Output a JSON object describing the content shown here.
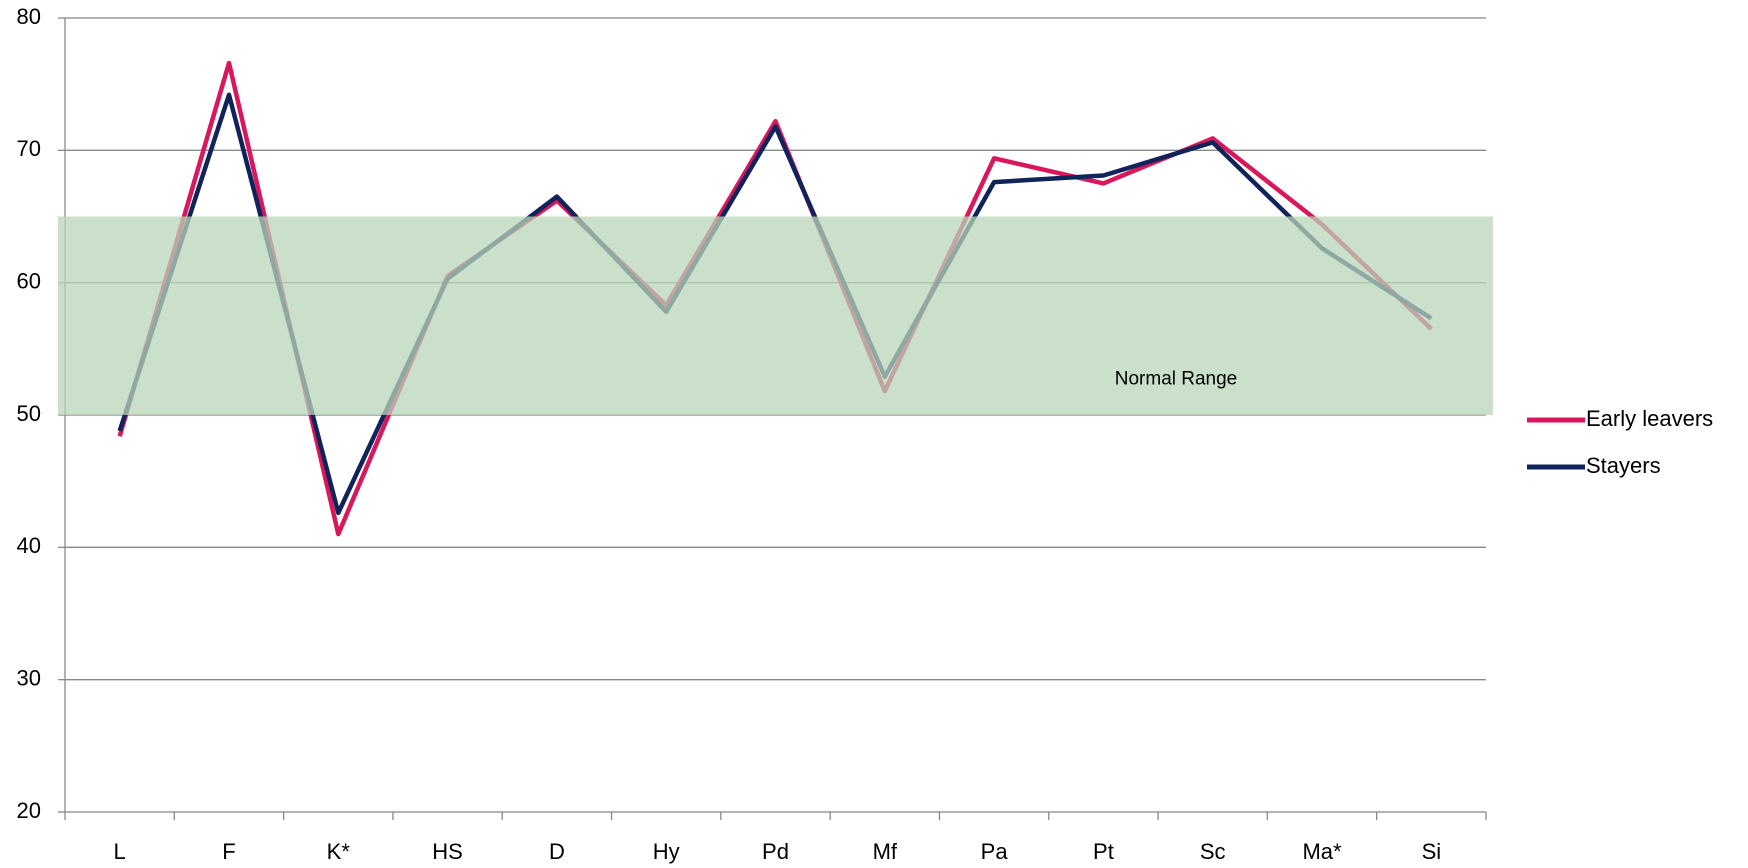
{
  "chart_data": {
    "type": "line",
    "categories": [
      "L",
      "F",
      "K*",
      "HS",
      "D",
      "Hy",
      "Pd",
      "Mf",
      "Pa",
      "Pt",
      "Sc",
      "Ma*",
      "Si"
    ],
    "series": [
      {
        "name": "Early leavers",
        "color": "#d9175c",
        "values": [
          48.4,
          76.6,
          41.0,
          60.5,
          66.2,
          58.3,
          72.2,
          51.8,
          69.4,
          67.5,
          70.9,
          64.4,
          56.5
        ]
      },
      {
        "name": "Stayers",
        "color": "#10235a",
        "values": [
          48.8,
          74.2,
          42.6,
          60.3,
          66.5,
          57.8,
          71.8,
          52.9,
          67.6,
          68.1,
          70.6,
          62.6,
          57.3
        ]
      }
    ],
    "ylim": [
      20,
      80
    ],
    "yticks": [
      20,
      30,
      40,
      50,
      60,
      70,
      80
    ],
    "grid": true,
    "band": {
      "text": "Normal Range",
      "ymin": 50,
      "ymax": 65,
      "color": "#b9d5b9"
    },
    "legend": "right"
  }
}
